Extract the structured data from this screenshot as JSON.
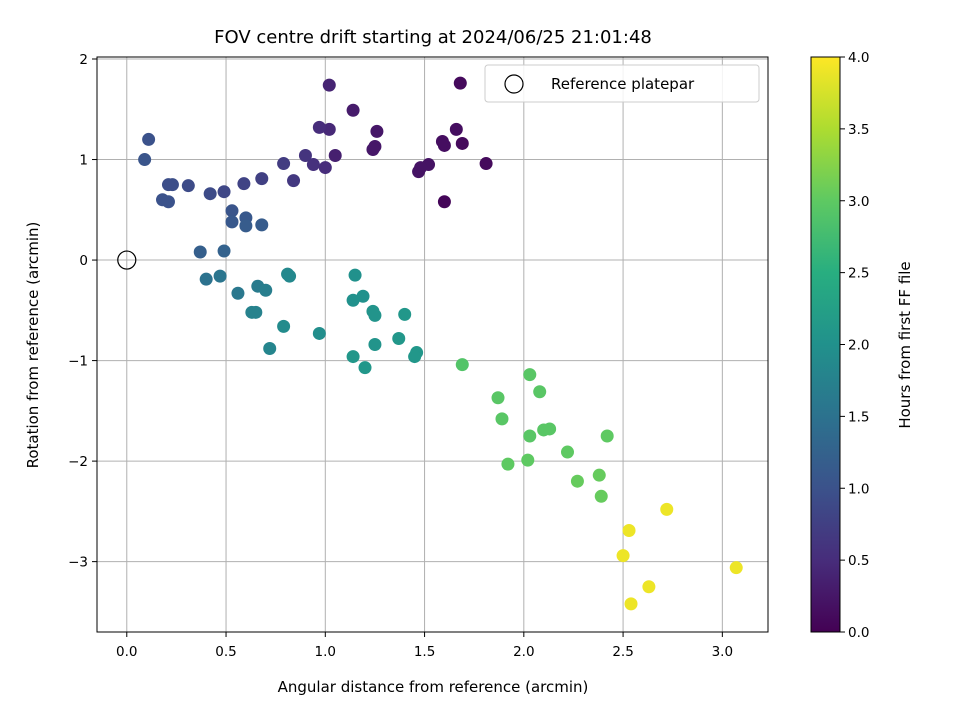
{
  "chart_data": {
    "type": "scatter",
    "title": "FOV centre drift starting at 2024/06/25 21:01:48",
    "xlabel": "Angular distance from reference (arcmin)",
    "ylabel": "Rotation from reference (arcmin)",
    "xlim": [
      -0.15,
      3.23
    ],
    "ylim": [
      -3.7,
      2.02
    ],
    "x_ticks": [
      "0.0",
      "0.5",
      "1.0",
      "1.5",
      "2.0",
      "2.5",
      "3.0"
    ],
    "y_ticks": [
      "2",
      "1",
      "0",
      "−1",
      "−2",
      "−3"
    ],
    "grid": true,
    "legend": {
      "placement": "top-right",
      "entries": [
        "Reference platepar"
      ]
    },
    "reference_point": {
      "x": 0.0,
      "y": 0.0
    },
    "colorbar": {
      "label": "Hours from first FF file",
      "colormap": "viridis",
      "range": [
        0.0,
        4.0
      ],
      "ticks": [
        "4.0",
        "3.5",
        "3.0",
        "2.5",
        "2.0",
        "1.5",
        "1.0",
        "0.5",
        "0.0"
      ]
    },
    "points": [
      [
        1.6,
        0.58,
        0.05
      ],
      [
        1.68,
        1.76,
        0.1
      ],
      [
        1.81,
        0.96,
        0.1
      ],
      [
        1.69,
        1.16,
        0.1
      ],
      [
        1.66,
        1.3,
        0.15
      ],
      [
        1.6,
        1.14,
        0.15
      ],
      [
        1.59,
        1.18,
        0.15
      ],
      [
        1.52,
        0.95,
        0.2
      ],
      [
        1.47,
        0.88,
        0.2
      ],
      [
        1.48,
        0.92,
        0.2
      ],
      [
        1.26,
        1.28,
        0.25
      ],
      [
        1.25,
        1.13,
        0.25
      ],
      [
        1.24,
        1.1,
        0.25
      ],
      [
        1.14,
        1.49,
        0.3
      ],
      [
        1.05,
        1.04,
        0.35
      ],
      [
        1.02,
        1.74,
        0.4
      ],
      [
        1.02,
        1.3,
        0.45
      ],
      [
        0.97,
        1.32,
        0.5
      ],
      [
        1.0,
        0.92,
        0.5
      ],
      [
        0.94,
        0.95,
        0.55
      ],
      [
        0.9,
        1.04,
        0.6
      ],
      [
        0.84,
        0.79,
        0.65
      ],
      [
        0.79,
        0.96,
        0.7
      ],
      [
        0.68,
        0.81,
        0.75
      ],
      [
        0.59,
        0.76,
        0.8
      ],
      [
        0.49,
        0.68,
        0.85
      ],
      [
        0.42,
        0.66,
        0.9
      ],
      [
        0.31,
        0.74,
        0.9
      ],
      [
        0.23,
        0.75,
        0.95
      ],
      [
        0.21,
        0.75,
        0.95
      ],
      [
        0.21,
        0.58,
        1.0
      ],
      [
        0.18,
        0.6,
        1.0
      ],
      [
        0.11,
        1.2,
        1.0
      ],
      [
        0.09,
        1.0,
        1.05
      ],
      [
        0.53,
        0.49,
        1.05
      ],
      [
        0.6,
        0.42,
        1.1
      ],
      [
        0.53,
        0.38,
        1.1
      ],
      [
        0.6,
        0.34,
        1.15
      ],
      [
        0.68,
        0.35,
        1.15
      ],
      [
        0.37,
        0.08,
        1.2
      ],
      [
        0.49,
        0.09,
        1.25
      ],
      [
        0.4,
        -0.19,
        1.5
      ],
      [
        0.47,
        -0.16,
        1.55
      ],
      [
        0.56,
        -0.33,
        1.6
      ],
      [
        0.66,
        -0.26,
        1.65
      ],
      [
        0.7,
        -0.3,
        1.7
      ],
      [
        0.63,
        -0.52,
        1.75
      ],
      [
        0.65,
        -0.52,
        1.75
      ],
      [
        0.72,
        -0.88,
        1.8
      ],
      [
        0.81,
        -0.14,
        1.85
      ],
      [
        0.82,
        -0.16,
        1.85
      ],
      [
        0.79,
        -0.66,
        1.9
      ],
      [
        0.97,
        -0.73,
        1.95
      ],
      [
        1.15,
        -0.15,
        2.0
      ],
      [
        1.19,
        -0.36,
        2.0
      ],
      [
        1.14,
        -0.4,
        2.0
      ],
      [
        1.24,
        -0.51,
        2.05
      ],
      [
        1.25,
        -0.55,
        2.05
      ],
      [
        1.25,
        -0.84,
        2.05
      ],
      [
        1.4,
        -0.54,
        2.1
      ],
      [
        1.37,
        -0.78,
        2.1
      ],
      [
        1.46,
        -0.92,
        2.1
      ],
      [
        1.45,
        -0.96,
        2.1
      ],
      [
        1.14,
        -0.96,
        2.1
      ],
      [
        1.2,
        -1.07,
        2.1
      ],
      [
        1.69,
        -1.04,
        2.9
      ],
      [
        2.03,
        -1.14,
        2.95
      ],
      [
        1.87,
        -1.37,
        2.95
      ],
      [
        2.08,
        -1.31,
        2.95
      ],
      [
        1.89,
        -1.58,
        2.95
      ],
      [
        2.03,
        -1.75,
        2.95
      ],
      [
        2.1,
        -1.69,
        2.95
      ],
      [
        2.13,
        -1.68,
        2.95
      ],
      [
        2.42,
        -1.75,
        3.0
      ],
      [
        1.92,
        -2.03,
        3.0
      ],
      [
        2.02,
        -1.99,
        3.0
      ],
      [
        2.22,
        -1.91,
        3.0
      ],
      [
        2.38,
        -2.14,
        3.05
      ],
      [
        2.27,
        -2.2,
        3.05
      ],
      [
        2.39,
        -2.35,
        3.05
      ],
      [
        2.72,
        -2.48,
        3.9
      ],
      [
        2.53,
        -2.69,
        3.9
      ],
      [
        2.5,
        -2.94,
        3.9
      ],
      [
        2.63,
        -3.25,
        3.9
      ],
      [
        2.54,
        -3.42,
        3.9
      ],
      [
        3.07,
        -3.06,
        3.9
      ]
    ]
  }
}
